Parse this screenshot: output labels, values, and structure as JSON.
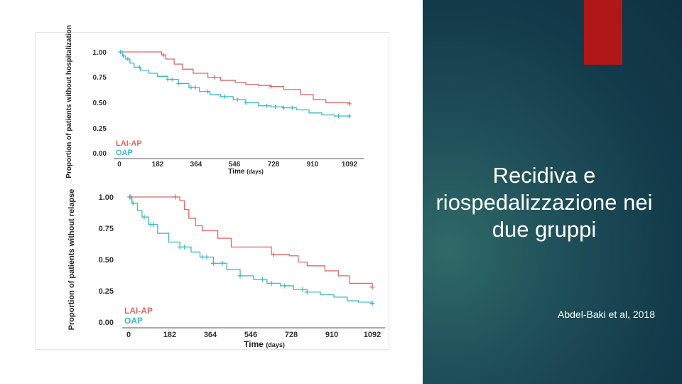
{
  "slide": {
    "title": "Recidiva e riospedalizzazione nei due gruppi",
    "citation": "Abdel-Baki et al, 2018",
    "accent_color": "#b01818",
    "panel_color": "#1a4553"
  },
  "chart_data": [
    {
      "type": "line",
      "title": "",
      "xlabel": "Time",
      "xlabel_unit": "(days)",
      "ylabel": "Proportion of patients without hospitalization",
      "xlim": [
        0,
        1092
      ],
      "ylim": [
        0,
        1
      ],
      "x_ticks": [
        "0",
        "182",
        "364",
        "546",
        "728",
        "910",
        "1092"
      ],
      "y_ticks": [
        "0.00",
        "0.25",
        "0.50",
        "0.75",
        "1.00"
      ],
      "legend_position": "bottom-left",
      "series": [
        {
          "name": "LAI-AP",
          "color": "#e06666",
          "points": [
            [
              0,
              1.0
            ],
            [
              30,
              1.0
            ],
            [
              200,
              0.97
            ],
            [
              220,
              0.93
            ],
            [
              260,
              0.88
            ],
            [
              300,
              0.83
            ],
            [
              350,
              0.79
            ],
            [
              420,
              0.75
            ],
            [
              480,
              0.72
            ],
            [
              550,
              0.7
            ],
            [
              600,
              0.68
            ],
            [
              660,
              0.67
            ],
            [
              720,
              0.66
            ],
            [
              780,
              0.63
            ],
            [
              860,
              0.58
            ],
            [
              920,
              0.53
            ],
            [
              980,
              0.5
            ],
            [
              1092,
              0.49
            ]
          ],
          "censor_x": [
            210,
            450,
            720,
            1092
          ]
        },
        {
          "name": "OAP",
          "color": "#3fb9c4",
          "points": [
            [
              0,
              1.0
            ],
            [
              15,
              0.96
            ],
            [
              30,
              0.93
            ],
            [
              50,
              0.89
            ],
            [
              70,
              0.85
            ],
            [
              100,
              0.82
            ],
            [
              140,
              0.79
            ],
            [
              180,
              0.76
            ],
            [
              230,
              0.73
            ],
            [
              280,
              0.69
            ],
            [
              330,
              0.65
            ],
            [
              380,
              0.61
            ],
            [
              430,
              0.58
            ],
            [
              480,
              0.56
            ],
            [
              540,
              0.53
            ],
            [
              600,
              0.5
            ],
            [
              660,
              0.47
            ],
            [
              720,
              0.46
            ],
            [
              780,
              0.45
            ],
            [
              840,
              0.43
            ],
            [
              900,
              0.4
            ],
            [
              960,
              0.38
            ],
            [
              1020,
              0.37
            ],
            [
              1092,
              0.36
            ]
          ],
          "censor_x": [
            5,
            20,
            40,
            95,
            230,
            250,
            280,
            340,
            360,
            420,
            500,
            560,
            600,
            700,
            740,
            780,
            820,
            1040,
            1090
          ]
        }
      ]
    },
    {
      "type": "line",
      "title": "",
      "xlabel": "Time",
      "xlabel_unit": "(days)",
      "ylabel": "Proportion of patients without relapse",
      "xlim": [
        0,
        1092
      ],
      "ylim": [
        0,
        1
      ],
      "x_ticks": [
        "0",
        "182",
        "364",
        "546",
        "728",
        "910",
        "1092"
      ],
      "y_ticks": [
        "0.00",
        "0.25",
        "0.50",
        "0.75",
        "1.00"
      ],
      "legend_position": "bottom-left",
      "series": [
        {
          "name": "LAI-AP",
          "color": "#e06666",
          "points": [
            [
              0,
              1.0
            ],
            [
              20,
              1.0
            ],
            [
              230,
              0.97
            ],
            [
              250,
              0.9
            ],
            [
              270,
              0.83
            ],
            [
              300,
              0.77
            ],
            [
              330,
              0.73
            ],
            [
              400,
              0.67
            ],
            [
              460,
              0.6
            ],
            [
              640,
              0.54
            ],
            [
              720,
              0.53
            ],
            [
              760,
              0.48
            ],
            [
              800,
              0.45
            ],
            [
              880,
              0.41
            ],
            [
              940,
              0.37
            ],
            [
              990,
              0.31
            ],
            [
              1092,
              0.28
            ]
          ],
          "censor_x": [
            10,
            210,
            650,
            1092
          ]
        },
        {
          "name": "OAP",
          "color": "#3fb9c4",
          "points": [
            [
              0,
              1.0
            ],
            [
              15,
              0.95
            ],
            [
              40,
              0.89
            ],
            [
              60,
              0.84
            ],
            [
              90,
              0.78
            ],
            [
              130,
              0.71
            ],
            [
              180,
              0.64
            ],
            [
              230,
              0.6
            ],
            [
              280,
              0.56
            ],
            [
              320,
              0.52
            ],
            [
              380,
              0.47
            ],
            [
              440,
              0.42
            ],
            [
              500,
              0.37
            ],
            [
              560,
              0.34
            ],
            [
              620,
              0.31
            ],
            [
              680,
              0.29
            ],
            [
              740,
              0.26
            ],
            [
              800,
              0.24
            ],
            [
              860,
              0.22
            ],
            [
              920,
              0.2
            ],
            [
              980,
              0.17
            ],
            [
              1030,
              0.16
            ],
            [
              1092,
              0.15
            ]
          ],
          "censor_x": [
            5,
            20,
            70,
            100,
            110,
            230,
            250,
            330,
            350,
            380,
            420,
            500,
            600,
            640,
            700,
            780,
            800,
            1092
          ]
        }
      ]
    }
  ]
}
